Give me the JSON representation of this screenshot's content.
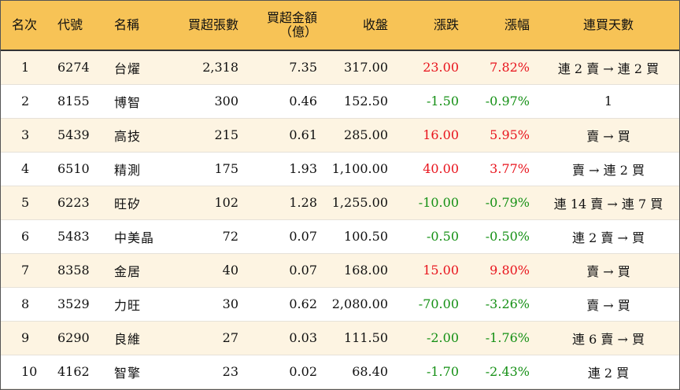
{
  "headers": {
    "rank": "名次",
    "code": "代號",
    "name": "名稱",
    "shares": "買超張數",
    "amount_line1": "買超金額",
    "amount_line2": "（億）",
    "close": "收盤",
    "change": "漲跌",
    "pct": "漲幅",
    "days": "連買天數"
  },
  "colors": {
    "header_bg": "#f7c356",
    "row_alt_bg": "#fdf4e2",
    "up": "#e8141d",
    "down": "#159015"
  },
  "rows": [
    {
      "rank": "1",
      "code": "6274",
      "name": "台燿",
      "shares": "2,318",
      "amount": "7.35",
      "close": "317.00",
      "change": "23.00",
      "pct": "7.82%",
      "direction": "up",
      "days": "連 2 賣 → 連 2 買"
    },
    {
      "rank": "2",
      "code": "8155",
      "name": "博智",
      "shares": "300",
      "amount": "0.46",
      "close": "152.50",
      "change": "-1.50",
      "pct": "-0.97%",
      "direction": "down",
      "days": "1"
    },
    {
      "rank": "3",
      "code": "5439",
      "name": "高技",
      "shares": "215",
      "amount": "0.61",
      "close": "285.00",
      "change": "16.00",
      "pct": "5.95%",
      "direction": "up",
      "days": "賣 → 買"
    },
    {
      "rank": "4",
      "code": "6510",
      "name": "精測",
      "shares": "175",
      "amount": "1.93",
      "close": "1,100.00",
      "change": "40.00",
      "pct": "3.77%",
      "direction": "up",
      "days": "賣 → 連 2 買"
    },
    {
      "rank": "5",
      "code": "6223",
      "name": "旺矽",
      "shares": "102",
      "amount": "1.28",
      "close": "1,255.00",
      "change": "-10.00",
      "pct": "-0.79%",
      "direction": "down",
      "days": "連 14 賣 → 連 7 買"
    },
    {
      "rank": "6",
      "code": "5483",
      "name": "中美晶",
      "shares": "72",
      "amount": "0.07",
      "close": "100.50",
      "change": "-0.50",
      "pct": "-0.50%",
      "direction": "down",
      "days": "連 2 賣 → 買"
    },
    {
      "rank": "7",
      "code": "8358",
      "name": "金居",
      "shares": "40",
      "amount": "0.07",
      "close": "168.00",
      "change": "15.00",
      "pct": "9.80%",
      "direction": "up",
      "days": "賣 → 買"
    },
    {
      "rank": "8",
      "code": "3529",
      "name": "力旺",
      "shares": "30",
      "amount": "0.62",
      "close": "2,080.00",
      "change": "-70.00",
      "pct": "-3.26%",
      "direction": "down",
      "days": "賣 → 買"
    },
    {
      "rank": "9",
      "code": "6290",
      "name": "良維",
      "shares": "27",
      "amount": "0.03",
      "close": "111.50",
      "change": "-2.00",
      "pct": "-1.76%",
      "direction": "down",
      "days": "連 6 賣 → 買"
    },
    {
      "rank": "10",
      "code": "4162",
      "name": "智擎",
      "shares": "23",
      "amount": "0.02",
      "close": "68.40",
      "change": "-1.70",
      "pct": "-2.43%",
      "direction": "down",
      "days": "連 2 買"
    }
  ]
}
